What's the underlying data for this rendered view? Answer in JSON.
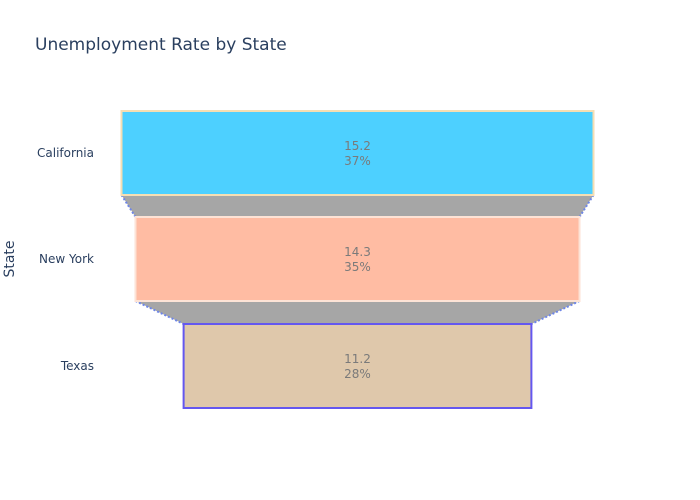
{
  "chart_data": {
    "type": "funnel",
    "title": "Unemployment Rate by State",
    "ylabel": "State",
    "categories": [
      "California",
      "New York",
      "Texas"
    ],
    "values": [
      15.2,
      14.3,
      11.2
    ],
    "percent_labels": [
      "37%",
      "35%",
      "28%"
    ],
    "colors": [
      "#4dd0ff",
      "#ffbca3",
      "#dfc8ab"
    ],
    "border_colors": [
      "#f5deb3",
      "#fde3d6",
      "#6457f0"
    ],
    "connector_color": "#a6a6a6",
    "connector_line_color": "#6e86e8"
  }
}
